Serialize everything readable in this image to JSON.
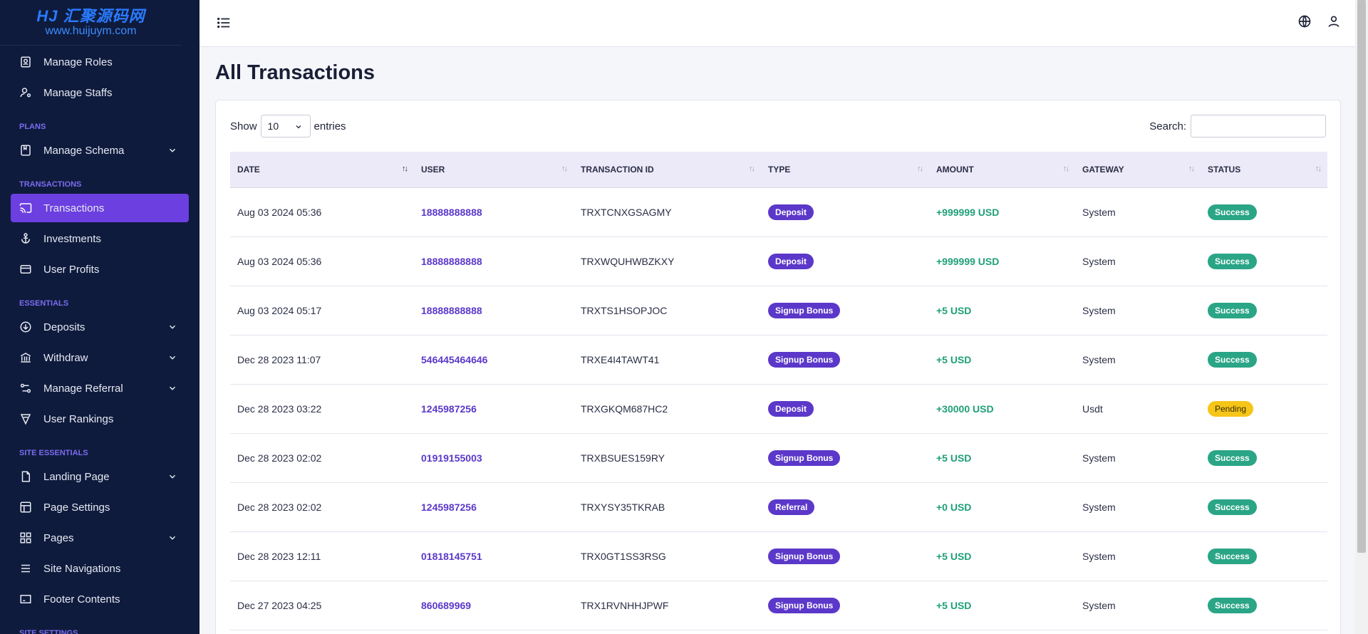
{
  "logo": {
    "main": "HJ 汇聚源码网",
    "sub": "www.huijuym.com"
  },
  "sidebar": {
    "top_items": [
      {
        "label": "Manage Roles",
        "icon": "id-badge-icon"
      },
      {
        "label": "Manage Staffs",
        "icon": "user-gear-icon"
      }
    ],
    "sections": {
      "plans": "PLANS",
      "transactions": "TRANSACTIONS",
      "essentials": "ESSENTIALS",
      "site_essentials": "SITE ESSENTIALS",
      "site_settings": "SITE SETTINGS"
    },
    "plans_items": [
      {
        "label": "Manage Schema",
        "icon": "book-icon",
        "expandable": true
      }
    ],
    "transaction_items": [
      {
        "label": "Transactions",
        "icon": "cast-icon",
        "active": true
      },
      {
        "label": "Investments",
        "icon": "anchor-icon"
      },
      {
        "label": "User Profits",
        "icon": "card-icon"
      }
    ],
    "essential_items": [
      {
        "label": "Deposits",
        "icon": "arrow-down-circle-icon",
        "expandable": true
      },
      {
        "label": "Withdraw",
        "icon": "bank-icon",
        "expandable": true
      },
      {
        "label": "Manage Referral",
        "icon": "link-icon",
        "expandable": true
      },
      {
        "label": "User Rankings",
        "icon": "award-icon"
      }
    ],
    "site_items": [
      {
        "label": "Landing Page",
        "icon": "page-icon",
        "expandable": true
      },
      {
        "label": "Page Settings",
        "icon": "layout-icon"
      },
      {
        "label": "Pages",
        "icon": "grid-icon",
        "expandable": true
      },
      {
        "label": "Site Navigations",
        "icon": "menu-lines-icon"
      },
      {
        "label": "Footer Contents",
        "icon": "footer-icon"
      }
    ]
  },
  "page": {
    "title": "All Transactions"
  },
  "controls": {
    "show_label": "Show",
    "entries_value": "10",
    "entries_label": "entries",
    "search_label": "Search:",
    "search_value": ""
  },
  "table": {
    "columns": [
      "DATE",
      "USER",
      "TRANSACTION ID",
      "TYPE",
      "AMOUNT",
      "GATEWAY",
      "STATUS"
    ],
    "rows": [
      {
        "date": "Aug 03 2024 05:36",
        "user": "18888888888",
        "txid": "TRXTCNXGSAGMY",
        "type": "Deposit",
        "amount": "+999999 USD",
        "gateway": "System",
        "status": "Success"
      },
      {
        "date": "Aug 03 2024 05:36",
        "user": "18888888888",
        "txid": "TRXWQUHWBZKXY",
        "type": "Deposit",
        "amount": "+999999 USD",
        "gateway": "System",
        "status": "Success"
      },
      {
        "date": "Aug 03 2024 05:17",
        "user": "18888888888",
        "txid": "TRXTS1HSOPJOC",
        "type": "Signup Bonus",
        "amount": "+5 USD",
        "gateway": "System",
        "status": "Success"
      },
      {
        "date": "Dec 28 2023 11:07",
        "user": "546445464646",
        "txid": "TRXE4I4TAWT41",
        "type": "Signup Bonus",
        "amount": "+5 USD",
        "gateway": "System",
        "status": "Success"
      },
      {
        "date": "Dec 28 2023 03:22",
        "user": "1245987256",
        "txid": "TRXGKQM687HC2",
        "type": "Deposit",
        "amount": "+30000 USD",
        "gateway": "Usdt",
        "status": "Pending"
      },
      {
        "date": "Dec 28 2023 02:02",
        "user": "01919155003",
        "txid": "TRXBSUES159RY",
        "type": "Signup Bonus",
        "amount": "+5 USD",
        "gateway": "System",
        "status": "Success"
      },
      {
        "date": "Dec 28 2023 02:02",
        "user": "1245987256",
        "txid": "TRXYSY35TKRAB",
        "type": "Referral",
        "amount": "+0 USD",
        "gateway": "System",
        "status": "Success"
      },
      {
        "date": "Dec 28 2023 12:11",
        "user": "01818145751",
        "txid": "TRX0GT1SS3RSG",
        "type": "Signup Bonus",
        "amount": "+5 USD",
        "gateway": "System",
        "status": "Success"
      },
      {
        "date": "Dec 27 2023 04:25",
        "user": "860689969",
        "txid": "TRX1RVNHHJPWF",
        "type": "Signup Bonus",
        "amount": "+5 USD",
        "gateway": "System",
        "status": "Success"
      }
    ]
  },
  "colors": {
    "sidebar_bg": "#0f1b3d",
    "accent": "#6c3fe0",
    "success": "#2aa586",
    "pending": "#f5c518",
    "amount": "#1e9f77"
  }
}
